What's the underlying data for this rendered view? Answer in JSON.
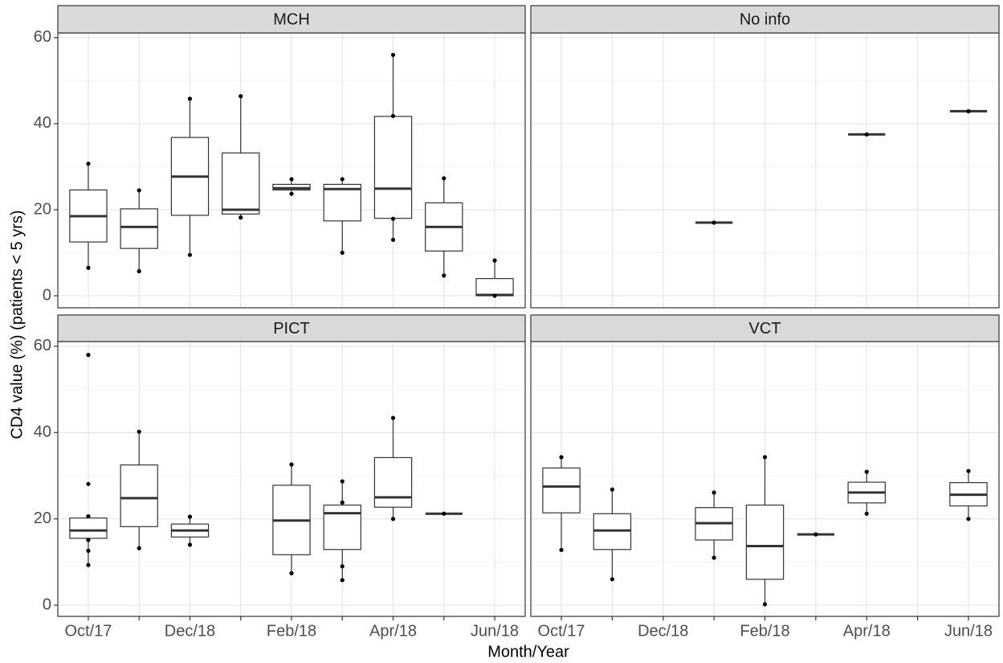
{
  "chart_data": [
    {
      "type": "box",
      "title": "MCH",
      "y_label": "CD4 value (%) (patients < 5 yrs)",
      "categories": [
        "Oct/17",
        null,
        "Dec/18",
        null,
        "Feb/18",
        null,
        "Apr/18",
        null,
        "Jun/18"
      ],
      "ylim": [
        -2.8,
        61.1
      ],
      "yticks": [
        0,
        20,
        40,
        60
      ],
      "grid": true,
      "boxes": [
        {
          "min": 6.5,
          "q1": 12.5,
          "median": 18.5,
          "q3": 24.6,
          "max": 30.7,
          "points": [
            30.7,
            6.5
          ]
        },
        {
          "min": 5.7,
          "q1": 11,
          "median": 16,
          "q3": 20.2,
          "max": 24.5,
          "points": [
            24.5,
            5.7
          ]
        },
        {
          "min": 9.5,
          "q1": 18.7,
          "median": 27.7,
          "q3": 36.8,
          "max": 45.8,
          "points": [
            45.8,
            9.5
          ]
        },
        {
          "min": 18.2,
          "q1": 19,
          "median": 20,
          "q3": 33.2,
          "max": 46.4,
          "points": [
            46.4,
            18.2
          ]
        },
        {
          "min": 23.7,
          "q1": 24.6,
          "median": 25,
          "q3": 25.9,
          "max": 27.1,
          "points": [
            27.1,
            23.7
          ]
        },
        {
          "min": 10,
          "q1": 17.4,
          "median": 24.8,
          "q3": 25.9,
          "max": 27.1,
          "points": [
            27.1,
            10
          ]
        },
        {
          "min": 13,
          "q1": 18,
          "median": 24.9,
          "q3": 41.7,
          "max": 56,
          "points": [
            56,
            41.8,
            17.9,
            13
          ]
        },
        {
          "min": 4.7,
          "q1": 10.4,
          "median": 16,
          "q3": 21.6,
          "max": 27.3,
          "points": [
            27.3,
            4.7
          ]
        },
        {
          "min": 0,
          "q1": 0,
          "median": 0.2,
          "q3": 4,
          "max": 8.2,
          "points": [
            8.2,
            0
          ]
        }
      ]
    },
    {
      "type": "box",
      "title": "No info",
      "categories": [
        "Oct/17",
        null,
        "Dec/18",
        null,
        "Feb/18",
        null,
        "Apr/18",
        null,
        "Jun/18"
      ],
      "ylim": [
        -2.8,
        61.1
      ],
      "yticks": [
        0,
        20,
        40,
        60
      ],
      "grid": true,
      "boxes": [
        null,
        null,
        null,
        {
          "min": 17,
          "q1": 17,
          "median": 17,
          "q3": 17,
          "max": 17,
          "points": [
            17
          ]
        },
        null,
        null,
        {
          "min": 37.5,
          "q1": 37.5,
          "median": 37.5,
          "q3": 37.5,
          "max": 37.5,
          "points": [
            37.5
          ]
        },
        null,
        {
          "min": 42.9,
          "q1": 42.9,
          "median": 42.9,
          "q3": 42.9,
          "max": 42.9,
          "points": [
            42.9
          ]
        }
      ]
    },
    {
      "type": "box",
      "title": "PICT",
      "x_label": "Month/Year",
      "categories": [
        "Oct/17",
        null,
        "Dec/18",
        null,
        "Feb/18",
        null,
        "Apr/18",
        null,
        "Jun/18"
      ],
      "ylim": [
        -2.6,
        61.1
      ],
      "yticks": [
        0,
        20,
        40,
        60
      ],
      "grid": true,
      "boxes": [
        {
          "min": 9.3,
          "q1": 15.5,
          "median": 17.3,
          "q3": 20.2,
          "max": 20.6,
          "points": [
            58,
            28.1,
            20.6,
            15.1,
            12.6,
            9.3
          ]
        },
        {
          "min": 13.2,
          "q1": 18.2,
          "median": 24.8,
          "q3": 32.5,
          "max": 40.2,
          "points": [
            40.2,
            13.2
          ]
        },
        {
          "min": 14,
          "q1": 15.8,
          "median": 17.3,
          "q3": 18.8,
          "max": 20.5,
          "points": [
            20.5,
            14
          ]
        },
        null,
        {
          "min": 7.4,
          "q1": 11.7,
          "median": 19.6,
          "q3": 27.8,
          "max": 32.6,
          "points": [
            32.6,
            7.4
          ]
        },
        {
          "min": 5.8,
          "q1": 12.9,
          "median": 21.3,
          "q3": 23.2,
          "max": 28.7,
          "points": [
            28.7,
            23.8,
            9,
            5.8
          ]
        },
        {
          "min": 20,
          "q1": 22.7,
          "median": 25,
          "q3": 34.2,
          "max": 43.4,
          "points": [
            43.4,
            20
          ]
        },
        {
          "min": 21.2,
          "q1": 21.2,
          "median": 21.2,
          "q3": 21.2,
          "max": 21.2,
          "points": [
            21.2
          ]
        },
        null
      ]
    },
    {
      "type": "box",
      "title": "VCT",
      "categories": [
        "Oct/17",
        null,
        "Dec/18",
        null,
        "Feb/18",
        null,
        "Apr/18",
        null,
        "Jun/18"
      ],
      "ylim": [
        -2.6,
        61.1
      ],
      "yticks": [
        0,
        20,
        40,
        60
      ],
      "grid": true,
      "boxes": [
        {
          "min": 12.8,
          "q1": 21.4,
          "median": 27.5,
          "q3": 31.8,
          "max": 34.3,
          "points": [
            34.3,
            12.8
          ]
        },
        {
          "min": 6,
          "q1": 12.9,
          "median": 17.3,
          "q3": 21.2,
          "max": 26.8,
          "points": [
            26.8,
            6
          ]
        },
        null,
        {
          "min": 11,
          "q1": 15.1,
          "median": 19,
          "q3": 22.6,
          "max": 26.1,
          "points": [
            26.1,
            11
          ]
        },
        {
          "min": 0.2,
          "q1": 6,
          "median": 13.7,
          "q3": 23.2,
          "max": 34.3,
          "points": [
            34.3,
            0.2
          ]
        },
        {
          "min": 16.4,
          "q1": 16.4,
          "median": 16.4,
          "q3": 16.4,
          "max": 16.4,
          "points": [
            16.4
          ]
        },
        {
          "min": 21.2,
          "q1": 23.7,
          "median": 26.1,
          "q3": 28.5,
          "max": 30.9,
          "points": [
            30.9,
            21.2
          ]
        },
        null,
        {
          "min": 20,
          "q1": 23,
          "median": 25.6,
          "q3": 28.4,
          "max": 31.1,
          "points": [
            31.1,
            20
          ]
        }
      ]
    }
  ]
}
